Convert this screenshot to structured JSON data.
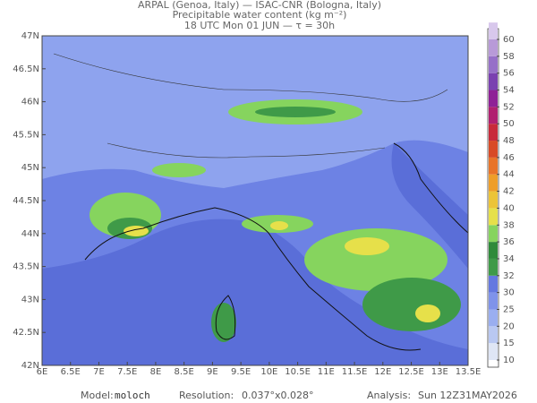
{
  "header": {
    "line1": "ARPAL (Genoa, Italy)  —  ISAC-CNR (Bologna, Italy)",
    "line2": "Precipitable water content (kg m⁻²)",
    "line3": "18 UTC Mon 01 JUN  —  τ = 30h"
  },
  "map": {
    "lat_labels": [
      "47N",
      "46.5N",
      "46N",
      "45.5N",
      "45N",
      "44.5N",
      "44N",
      "43.5N",
      "43N",
      "42.5N",
      "42N"
    ],
    "lon_labels": [
      "6E",
      "6.5E",
      "7E",
      "7.5E",
      "8E",
      "8.5E",
      "9E",
      "9.5E",
      "10E",
      "10.5E",
      "11E",
      "11.5E",
      "12E",
      "12.5E",
      "13E",
      "13.5E"
    ]
  },
  "colorbar": {
    "labels": [
      10,
      15,
      20,
      25,
      30,
      32,
      34,
      36,
      38,
      40,
      42,
      44,
      46,
      48,
      50,
      52,
      54,
      56,
      58,
      60
    ],
    "colors": [
      "#dfe6f5",
      "#b9c8f2",
      "#9aaef0",
      "#7f93ea",
      "#6478e0",
      "#3f9a48",
      "#2f8a3a",
      "#86d45e",
      "#e6e04a",
      "#ecc438",
      "#ee9e2a",
      "#e8742a",
      "#d84a26",
      "#c82a3a",
      "#b02070",
      "#8e2096",
      "#7a40b0",
      "#9670c8",
      "#b89ad8",
      "#d8c8ec"
    ]
  },
  "footer": {
    "model_label": "Model:",
    "model": "moloch",
    "res_label": "Resolution:",
    "res": "0.037°x0.028°",
    "an_label": "Analysis:",
    "an": "Sun 12Z31MAY2026"
  }
}
